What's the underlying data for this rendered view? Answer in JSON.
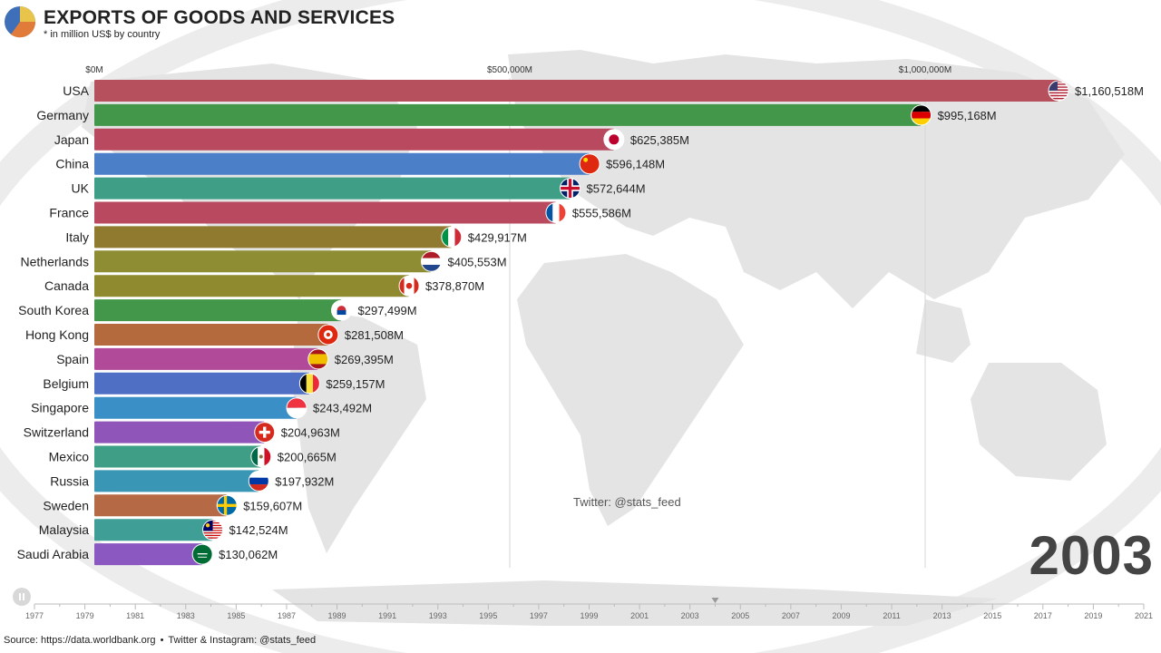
{
  "header": {
    "title": "EXPORTS OF GOODS AND SERVICES",
    "subtitle": "* in million US$ by country"
  },
  "year": "2003",
  "watermark": "Twitter: @stats_feed",
  "footer": {
    "source": "Source: https://data.worldbank.org",
    "separator": "•",
    "social": "Twitter & Instagram: @stats_feed"
  },
  "timeline": {
    "ticks": [
      "1977",
      "1979",
      "1981",
      "1983",
      "1985",
      "1987",
      "1989",
      "1991",
      "1993",
      "1995",
      "1997",
      "1999",
      "2001",
      "2003",
      "2005",
      "2007",
      "2009",
      "2011",
      "2013",
      "2015",
      "2017",
      "2019",
      "2021"
    ],
    "current": "2003",
    "play_icon": "pause-icon"
  },
  "colors": {
    "USA": "#b5505c",
    "Germany": "#43974a",
    "Japan": "#b8495f",
    "China": "#4b7fc8",
    "UK": "#3f9e86",
    "France": "#b8495f",
    "Italy": "#8f7a2f",
    "Netherlands": "#8e8d34",
    "Canada": "#8f8a2f",
    "South Korea": "#43974a",
    "Hong Kong": "#b56a3e",
    "Spain": "#b24a9a",
    "Belgium": "#4f6fc4",
    "Singapore": "#3a8fc7",
    "Switzerland": "#8f55b8",
    "Mexico": "#3f9e86",
    "Russia": "#3a96b5",
    "Sweden": "#b56a45",
    "Malaysia": "#3f9e96",
    "Saudi Arabia": "#8a58c0"
  },
  "chart_data": {
    "type": "bar",
    "orientation": "horizontal",
    "title": "EXPORTS OF GOODS AND SERVICES",
    "subtitle": "* in million US$ by country",
    "xlim": [
      0,
      1200000
    ],
    "x_ticks": [
      0,
      500000,
      1000000
    ],
    "x_tick_labels": [
      "$0M",
      "$500,000M",
      "$1,000,000M"
    ],
    "categories": [
      "USA",
      "Germany",
      "Japan",
      "China",
      "UK",
      "France",
      "Italy",
      "Netherlands",
      "Canada",
      "South Korea",
      "Hong Kong",
      "Spain",
      "Belgium",
      "Singapore",
      "Switzerland",
      "Mexico",
      "Russia",
      "Sweden",
      "Malaysia",
      "Saudi Arabia"
    ],
    "values": [
      1160518,
      995168,
      625385,
      596148,
      572644,
      555586,
      429917,
      405553,
      378870,
      297499,
      281508,
      269395,
      259157,
      243492,
      204963,
      200665,
      197932,
      159607,
      142524,
      130062
    ],
    "value_labels": [
      "$1,160,518M",
      "$995,168M",
      "$625,385M",
      "$596,148M",
      "$572,644M",
      "$555,586M",
      "$429,917M",
      "$405,553M",
      "$378,870M",
      "$297,499M",
      "$281,508M",
      "$269,395M",
      "$259,157M",
      "$243,492M",
      "$204,963M",
      "$200,665M",
      "$197,932M",
      "$159,607M",
      "$142,524M",
      "$130,062M"
    ],
    "flags": [
      "usa-flag-icon",
      "germany-flag-icon",
      "japan-flag-icon",
      "china-flag-icon",
      "uk-flag-icon",
      "france-flag-icon",
      "italy-flag-icon",
      "netherlands-flag-icon",
      "canada-flag-icon",
      "south-korea-flag-icon",
      "hong-kong-flag-icon",
      "spain-flag-icon",
      "belgium-flag-icon",
      "singapore-flag-icon",
      "switzerland-flag-icon",
      "mexico-flag-icon",
      "russia-flag-icon",
      "sweden-flag-icon",
      "malaysia-flag-icon",
      "saudi-arabia-flag-icon"
    ],
    "grid": true,
    "legend": "none"
  }
}
